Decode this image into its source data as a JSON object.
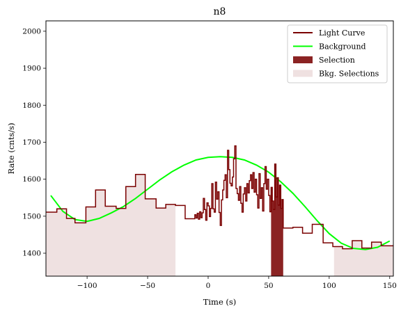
{
  "chart_data": {
    "type": "line",
    "title": "n8",
    "xlabel": "Time (s)",
    "ylabel": "Rate (cnts/s)",
    "xlim": [
      -134,
      153
    ],
    "ylim": [
      1338,
      2028
    ],
    "xticks": [
      -100,
      -50,
      0,
      50,
      100,
      150
    ],
    "xtick_labels": [
      "−100",
      "−50",
      "0",
      "50",
      "100",
      "150"
    ],
    "yticks": [
      1400,
      1500,
      1600,
      1700,
      1800,
      1900,
      2000
    ],
    "ytick_labels": [
      "1400",
      "1500",
      "1600",
      "1700",
      "1800",
      "1900",
      "2000"
    ],
    "grid": false,
    "legend_position": "top-right",
    "legend": [
      {
        "label": "Light Curve",
        "kind": "line",
        "color": "#7a0000"
      },
      {
        "label": "Background",
        "kind": "line",
        "color": "#00ff00"
      },
      {
        "label": "Selection",
        "kind": "patch",
        "color": "#8b2323"
      },
      {
        "label": "Bkg. Selections",
        "kind": "patch",
        "color": "#efe1e1"
      }
    ],
    "colors": {
      "light_curve": "#7a0000",
      "background": "#00ff00",
      "selection": "#8b2323",
      "bkg_selection": "#efe1e1"
    },
    "bkg_selections": [
      [
        -134,
        -27
      ],
      [
        104,
        153
      ]
    ],
    "selection": [
      52,
      62
    ],
    "light_curve_step": [
      [
        -134,
        1511
      ],
      [
        -125,
        1520
      ],
      [
        -117,
        1494
      ],
      [
        -110,
        1482
      ],
      [
        -101,
        1525
      ],
      [
        -93,
        1571
      ],
      [
        -85,
        1527
      ],
      [
        -76,
        1521
      ],
      [
        -68,
        1580
      ],
      [
        -60,
        1613
      ],
      [
        -52,
        1547
      ],
      [
        -43,
        1522
      ],
      [
        -35,
        1532
      ],
      [
        -27,
        1529
      ],
      [
        -19,
        1493
      ],
      [
        -11,
        1504
      ],
      [
        -10,
        1495
      ],
      [
        -9,
        1508
      ],
      [
        -8,
        1492
      ],
      [
        -7,
        1512
      ],
      [
        -6,
        1496
      ],
      [
        -5,
        1509
      ],
      [
        -4,
        1548
      ],
      [
        -3,
        1518
      ],
      [
        -2,
        1489
      ],
      [
        -1,
        1536
      ],
      [
        0,
        1528
      ],
      [
        1,
        1499
      ],
      [
        2,
        1521
      ],
      [
        3,
        1588
      ],
      [
        4,
        1520
      ],
      [
        5,
        1511
      ],
      [
        6,
        1592
      ],
      [
        7,
        1546
      ],
      [
        8,
        1566
      ],
      [
        9,
        1510
      ],
      [
        10,
        1475
      ],
      [
        11,
        1544
      ],
      [
        12,
        1571
      ],
      [
        13,
        1597
      ],
      [
        14,
        1612
      ],
      [
        15,
        1550
      ],
      [
        16,
        1678
      ],
      [
        17,
        1626
      ],
      [
        18,
        1589
      ],
      [
        19,
        1582
      ],
      [
        20,
        1606
      ],
      [
        21,
        1655
      ],
      [
        22,
        1690
      ],
      [
        23,
        1575
      ],
      [
        24,
        1561
      ],
      [
        25,
        1543
      ],
      [
        26,
        1580
      ],
      [
        27,
        1535
      ],
      [
        28,
        1511
      ],
      [
        29,
        1560
      ],
      [
        30,
        1577
      ],
      [
        31,
        1541
      ],
      [
        32,
        1588
      ],
      [
        33,
        1563
      ],
      [
        34,
        1596
      ],
      [
        35,
        1612
      ],
      [
        36,
        1575
      ],
      [
        37,
        1618
      ],
      [
        38,
        1565
      ],
      [
        39,
        1600
      ],
      [
        40,
        1558
      ],
      [
        41,
        1522
      ],
      [
        42,
        1615
      ],
      [
        43,
        1548
      ],
      [
        44,
        1577
      ],
      [
        45,
        1514
      ],
      [
        46,
        1588
      ],
      [
        47,
        1634
      ],
      [
        48,
        1573
      ],
      [
        49,
        1600
      ],
      [
        50,
        1556
      ],
      [
        51,
        1512
      ],
      [
        52,
        1578
      ],
      [
        53,
        1541
      ],
      [
        54,
        1518
      ],
      [
        55,
        1641
      ],
      [
        56,
        1552
      ],
      [
        57,
        1604
      ],
      [
        58,
        1530
      ],
      [
        59,
        1584
      ],
      [
        60,
        1521
      ],
      [
        61,
        1545
      ],
      [
        62,
        1468
      ],
      [
        70,
        1470
      ],
      [
        78,
        1454
      ],
      [
        86,
        1478
      ],
      [
        95,
        1428
      ],
      [
        103,
        1418
      ],
      [
        111,
        1412
      ],
      [
        119,
        1434
      ],
      [
        127,
        1414
      ],
      [
        135,
        1430
      ],
      [
        143,
        1420
      ],
      [
        153,
        1420
      ]
    ],
    "background_curve": {
      "x": [
        -130,
        -120,
        -110,
        -100,
        -90,
        -80,
        -70,
        -60,
        -50,
        -40,
        -30,
        -20,
        -10,
        0,
        10,
        20,
        30,
        40,
        50,
        60,
        70,
        80,
        90,
        100,
        110,
        120,
        130,
        140,
        150
      ],
      "y": [
        1556,
        1513,
        1491,
        1486,
        1494,
        1509,
        1526,
        1548,
        1573,
        1598,
        1620,
        1638,
        1652,
        1659,
        1661,
        1659,
        1652,
        1638,
        1619,
        1593,
        1562,
        1526,
        1488,
        1453,
        1427,
        1413,
        1410,
        1416,
        1433
      ]
    }
  }
}
